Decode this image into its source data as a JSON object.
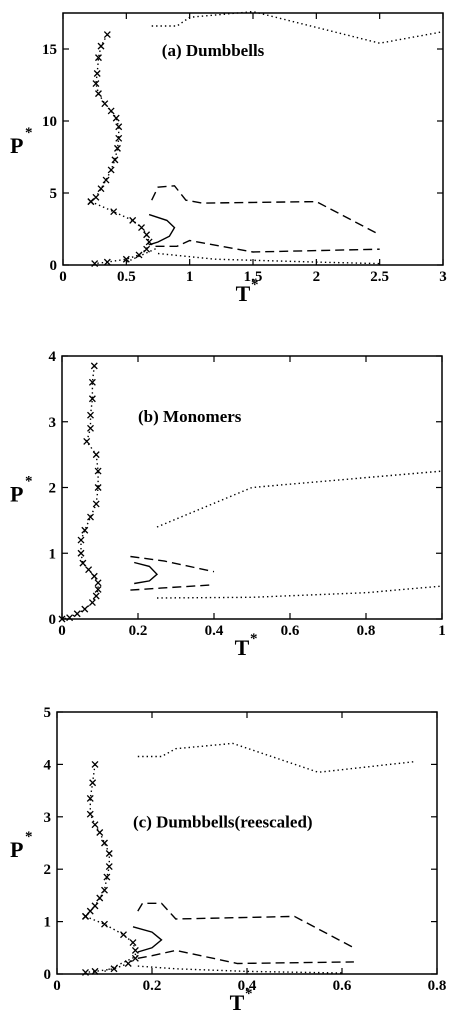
{
  "chart_data": [
    {
      "type": "line",
      "title": "(a) Dumbbells",
      "xlabel": "T",
      "ylabel": "P",
      "axis_superscript": "*",
      "xlim": [
        0,
        3
      ],
      "ylim": [
        0,
        17.5
      ],
      "xticks": [
        0,
        0.5,
        1,
        1.5,
        2,
        2.5,
        3
      ],
      "xtick_labels": [
        "0",
        "0.5",
        "1",
        "1.5",
        "2",
        "2.5",
        "3"
      ],
      "yticks": [
        0,
        5,
        10,
        15
      ],
      "ytick_labels": [
        "0",
        "5",
        "10",
        "15"
      ],
      "grid": false,
      "series": [
        {
          "style": "dotted-x",
          "points": [
            [
              0.35,
              16.0
            ],
            [
              0.3,
              15.2
            ],
            [
              0.28,
              14.4
            ],
            [
              0.27,
              13.3
            ],
            [
              0.26,
              12.6
            ],
            [
              0.28,
              11.9
            ],
            [
              0.33,
              11.2
            ],
            [
              0.38,
              10.7
            ],
            [
              0.42,
              10.2
            ],
            [
              0.44,
              9.6
            ],
            [
              0.44,
              8.8
            ],
            [
              0.43,
              8.1
            ],
            [
              0.41,
              7.3
            ],
            [
              0.38,
              6.6
            ],
            [
              0.34,
              5.9
            ],
            [
              0.3,
              5.3
            ],
            [
              0.26,
              4.7
            ],
            [
              0.22,
              4.4
            ]
          ]
        },
        {
          "style": "dotted-x",
          "points": [
            [
              0.22,
              4.4
            ],
            [
              0.4,
              3.7
            ],
            [
              0.55,
              3.1
            ],
            [
              0.62,
              2.6
            ],
            [
              0.66,
              2.1
            ],
            [
              0.68,
              1.6
            ],
            [
              0.66,
              1.1
            ],
            [
              0.6,
              0.7
            ],
            [
              0.5,
              0.4
            ],
            [
              0.35,
              0.2
            ],
            [
              0.25,
              0.1
            ]
          ]
        },
        {
          "style": "solid",
          "points": [
            [
              0.68,
              3.5
            ],
            [
              0.82,
              3.1
            ],
            [
              0.88,
              2.6
            ],
            [
              0.84,
              2.0
            ],
            [
              0.75,
              1.6
            ],
            [
              0.68,
              1.4
            ]
          ]
        },
        {
          "style": "dashed",
          "points": [
            [
              0.7,
              4.5
            ],
            [
              0.75,
              5.4
            ],
            [
              0.88,
              5.5
            ],
            [
              0.97,
              4.5
            ],
            [
              1.1,
              4.3
            ],
            [
              2.0,
              4.4
            ],
            [
              2.5,
              2.1
            ]
          ]
        },
        {
          "style": "dashed",
          "points": [
            [
              0.73,
              1.3
            ],
            [
              0.9,
              1.3
            ],
            [
              1.0,
              1.7
            ],
            [
              1.5,
              0.9
            ],
            [
              2.5,
              1.1
            ]
          ]
        },
        {
          "style": "dotted",
          "points": [
            [
              0.75,
              0.8
            ],
            [
              1.2,
              0.4
            ],
            [
              2.0,
              0.2
            ],
            [
              2.5,
              0.1
            ]
          ]
        },
        {
          "style": "dotted",
          "points": [
            [
              0.5,
              0.2
            ],
            [
              0.75,
              1.2
            ]
          ]
        },
        {
          "style": "dotted",
          "points": [
            [
              0.7,
              16.6
            ],
            [
              0.9,
              16.6
            ],
            [
              1.0,
              17.2
            ],
            [
              1.5,
              17.6
            ],
            [
              2.5,
              15.4
            ],
            [
              3.0,
              16.2
            ]
          ]
        }
      ]
    },
    {
      "type": "line",
      "title": "(b) Monomers",
      "xlabel": "T",
      "ylabel": "P",
      "axis_superscript": "*",
      "xlim": [
        0,
        1
      ],
      "ylim": [
        0,
        4
      ],
      "xticks": [
        0,
        0.2,
        0.4,
        0.6,
        0.8,
        1
      ],
      "xtick_labels": [
        "0",
        "0.2",
        "0.4",
        "0.6",
        "0.8",
        "1"
      ],
      "yticks": [
        0,
        1,
        2,
        3,
        4
      ],
      "ytick_labels": [
        "0",
        "1",
        "2",
        "3",
        "4"
      ],
      "grid": false,
      "series": [
        {
          "style": "dotted-x",
          "points": [
            [
              0.085,
              3.85
            ],
            [
              0.08,
              3.6
            ],
            [
              0.08,
              3.35
            ],
            [
              0.075,
              3.1
            ],
            [
              0.075,
              2.9
            ],
            [
              0.065,
              2.7
            ],
            [
              0.09,
              2.5
            ],
            [
              0.095,
              2.25
            ],
            [
              0.095,
              2.0
            ],
            [
              0.09,
              1.75
            ],
            [
              0.075,
              1.55
            ],
            [
              0.06,
              1.35
            ],
            [
              0.05,
              1.2
            ],
            [
              0.05,
              1.0
            ],
            [
              0.055,
              0.85
            ],
            [
              0.07,
              0.75
            ],
            [
              0.085,
              0.65
            ],
            [
              0.095,
              0.55
            ],
            [
              0.095,
              0.45
            ],
            [
              0.09,
              0.35
            ],
            [
              0.08,
              0.25
            ],
            [
              0.06,
              0.15
            ],
            [
              0.04,
              0.08
            ],
            [
              0.02,
              0.02
            ],
            [
              0.0,
              0.0
            ]
          ]
        },
        {
          "style": "solid",
          "points": [
            [
              0.19,
              0.86
            ],
            [
              0.23,
              0.8
            ],
            [
              0.25,
              0.68
            ],
            [
              0.23,
              0.58
            ],
            [
              0.19,
              0.54
            ]
          ]
        },
        {
          "style": "dashed",
          "points": [
            [
              0.18,
              0.95
            ],
            [
              0.27,
              0.88
            ],
            [
              0.4,
              0.72
            ]
          ]
        },
        {
          "style": "dashed",
          "points": [
            [
              0.18,
              0.44
            ],
            [
              0.26,
              0.47
            ],
            [
              0.4,
              0.52
            ]
          ]
        },
        {
          "style": "dotted",
          "points": [
            [
              0.25,
              1.4
            ],
            [
              0.5,
              2.0
            ],
            [
              0.8,
              2.15
            ],
            [
              1.0,
              2.25
            ]
          ]
        },
        {
          "style": "dotted",
          "points": [
            [
              0.25,
              0.32
            ],
            [
              0.5,
              0.33
            ],
            [
              0.8,
              0.4
            ],
            [
              1.0,
              0.5
            ]
          ]
        }
      ]
    },
    {
      "type": "line",
      "title": "(c)  Dumbbells(reescaled)",
      "xlabel": "T",
      "ylabel": "P",
      "axis_superscript": "*",
      "xlim": [
        0,
        0.8
      ],
      "ylim": [
        0,
        5
      ],
      "xticks": [
        0,
        0.2,
        0.4,
        0.6,
        0.8
      ],
      "xtick_labels": [
        "0",
        "0.2",
        "0.4",
        "0.6",
        "0.8"
      ],
      "yticks": [
        0,
        1,
        2,
        3,
        4,
        5
      ],
      "ytick_labels": [
        "0",
        "1",
        "2",
        "3",
        "4",
        "5"
      ],
      "grid": false,
      "series": [
        {
          "style": "dotted-x",
          "points": [
            [
              0.08,
              4.0
            ],
            [
              0.075,
              3.65
            ],
            [
              0.07,
              3.35
            ],
            [
              0.07,
              3.05
            ],
            [
              0.08,
              2.85
            ],
            [
              0.09,
              2.7
            ],
            [
              0.1,
              2.5
            ],
            [
              0.11,
              2.3
            ],
            [
              0.11,
              2.05
            ],
            [
              0.105,
              1.85
            ],
            [
              0.1,
              1.6
            ],
            [
              0.09,
              1.45
            ],
            [
              0.08,
              1.3
            ],
            [
              0.07,
              1.2
            ],
            [
              0.06,
              1.1
            ]
          ]
        },
        {
          "style": "dotted-x",
          "points": [
            [
              0.06,
              1.1
            ],
            [
              0.1,
              0.95
            ],
            [
              0.14,
              0.75
            ],
            [
              0.16,
              0.6
            ],
            [
              0.165,
              0.45
            ],
            [
              0.165,
              0.3
            ],
            [
              0.15,
              0.2
            ],
            [
              0.12,
              0.1
            ],
            [
              0.08,
              0.05
            ],
            [
              0.06,
              0.03
            ]
          ]
        },
        {
          "style": "solid",
          "points": [
            [
              0.16,
              0.9
            ],
            [
              0.2,
              0.8
            ],
            [
              0.22,
              0.65
            ],
            [
              0.2,
              0.5
            ],
            [
              0.17,
              0.42
            ]
          ]
        },
        {
          "style": "dashed",
          "points": [
            [
              0.17,
              1.2
            ],
            [
              0.18,
              1.35
            ],
            [
              0.22,
              1.35
            ],
            [
              0.25,
              1.05
            ],
            [
              0.5,
              1.1
            ],
            [
              0.625,
              0.5
            ]
          ]
        },
        {
          "style": "dashed",
          "points": [
            [
              0.17,
              0.3
            ],
            [
              0.2,
              0.35
            ],
            [
              0.25,
              0.45
            ],
            [
              0.38,
              0.2
            ],
            [
              0.625,
              0.23
            ]
          ]
        },
        {
          "style": "dotted",
          "points": [
            [
              0.17,
              0.15
            ],
            [
              0.25,
              0.1
            ],
            [
              0.4,
              0.05
            ],
            [
              0.6,
              0.02
            ]
          ]
        },
        {
          "style": "dotted",
          "points": [
            [
              0.1,
              0.05
            ],
            [
              0.17,
              0.35
            ]
          ]
        },
        {
          "style": "dotted",
          "points": [
            [
              0.17,
              4.15
            ],
            [
              0.22,
              4.15
            ],
            [
              0.25,
              4.3
            ],
            [
              0.37,
              4.4
            ],
            [
              0.55,
              3.85
            ],
            [
              0.75,
              4.05
            ]
          ]
        }
      ]
    }
  ]
}
